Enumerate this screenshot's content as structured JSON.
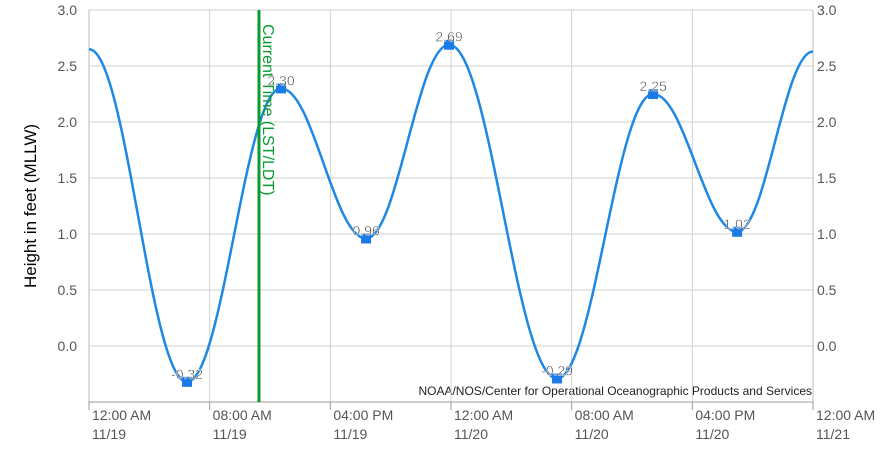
{
  "chart_data": {
    "type": "line",
    "y_label": "Height in feet (MLLW)",
    "credit": "NOAA/NOS/Center for Operational Oceanographic Products and Services",
    "current_time": {
      "label": "Current Time (LST/LDT)",
      "x": 11.27,
      "color": "#0a9a2e"
    },
    "xlim": [
      0,
      48
    ],
    "xticks": [
      {
        "value": 0,
        "label": "12:00 AM 11/19"
      },
      {
        "value": 8,
        "label": "08:00 AM 11/19"
      },
      {
        "value": 16,
        "label": "04:00 PM 11/19"
      },
      {
        "value": 24,
        "label": "12:00 AM 11/20"
      },
      {
        "value": 32,
        "label": "08:00 AM 11/20"
      },
      {
        "value": 40,
        "label": "04:00 PM 11/20"
      },
      {
        "value": 48,
        "label": "12:00 AM 11/21"
      }
    ],
    "ylim": [
      -0.5,
      3.0
    ],
    "yticks": [
      {
        "value": 0,
        "label": "0.0"
      },
      {
        "value": 0.5,
        "label": "0.5"
      },
      {
        "value": 1,
        "label": "1.0"
      },
      {
        "value": 1.5,
        "label": "1.5"
      },
      {
        "value": 2,
        "label": "2.0"
      },
      {
        "value": 2.5,
        "label": "2.5"
      },
      {
        "value": 3,
        "label": "3.0"
      }
    ],
    "grid": true,
    "prediction": {
      "color": "#1e88e5",
      "x": [
        0,
        6.5,
        12.73,
        18.37,
        23.87,
        31.03,
        37.4,
        42.97,
        48
      ],
      "values": [
        2.65,
        -0.32,
        2.3,
        0.96,
        2.69,
        -0.29,
        2.25,
        1.02,
        2.63
      ]
    },
    "hilo": {
      "color": "#1a7ae8",
      "x": [
        6.5,
        12.73,
        18.37,
        23.87,
        31.03,
        37.4,
        42.97
      ],
      "values": [
        -0.32,
        2.3,
        0.96,
        2.69,
        -0.29,
        2.25,
        1.02
      ],
      "value_labels": [
        "-0.32",
        "2.30",
        "0.96",
        "2.69",
        "-0.29",
        "2.25",
        "1.02"
      ]
    }
  }
}
